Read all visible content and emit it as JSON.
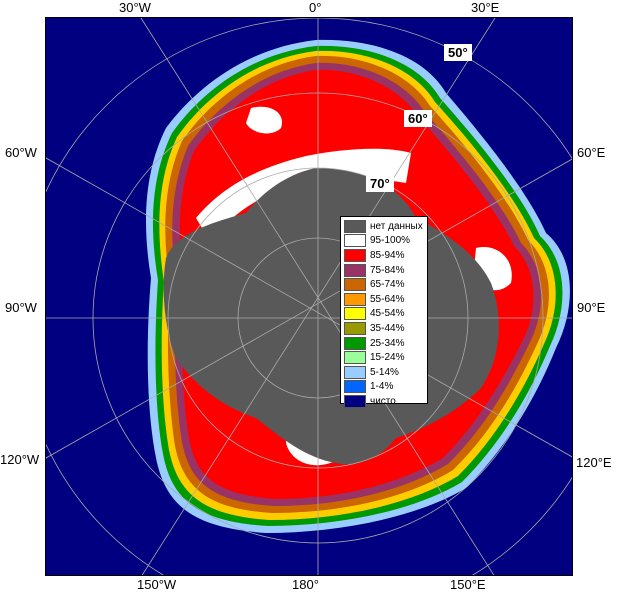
{
  "axis_labels": {
    "top": [
      "30°W",
      "0°",
      "30°E"
    ],
    "left": [
      "60°W",
      "90°W",
      "120°W"
    ],
    "right": [
      "60°E",
      "90°E",
      "120°E"
    ],
    "bottom": [
      "150°W",
      "180°",
      "150°E"
    ]
  },
  "lat_labels": [
    "50°",
    "60°",
    "70°"
  ],
  "legend": [
    {
      "label": "нет данных",
      "color": "#595959"
    },
    {
      "label": "95-100%",
      "color": "#ffffff"
    },
    {
      "label": "85-94%",
      "color": "#ff0000"
    },
    {
      "label": "75-84%",
      "color": "#993366"
    },
    {
      "label": "65-74%",
      "color": "#cc6600"
    },
    {
      "label": "55-64%",
      "color": "#ff9900"
    },
    {
      "label": "45-54%",
      "color": "#ffff00"
    },
    {
      "label": "35-44%",
      "color": "#999900"
    },
    {
      "label": "25-34%",
      "color": "#009900"
    },
    {
      "label": "15-24%",
      "color": "#99ff99"
    },
    {
      "label": "5-14%",
      "color": "#99ccff"
    },
    {
      "label": "1-4%",
      "color": "#0066ff"
    },
    {
      "label": "чисто",
      "color": "#000080"
    }
  ],
  "colors": {
    "ocean": "#000080",
    "land": "#595959",
    "ice_high": "#ff0000",
    "ice_full": "#ffffff"
  }
}
